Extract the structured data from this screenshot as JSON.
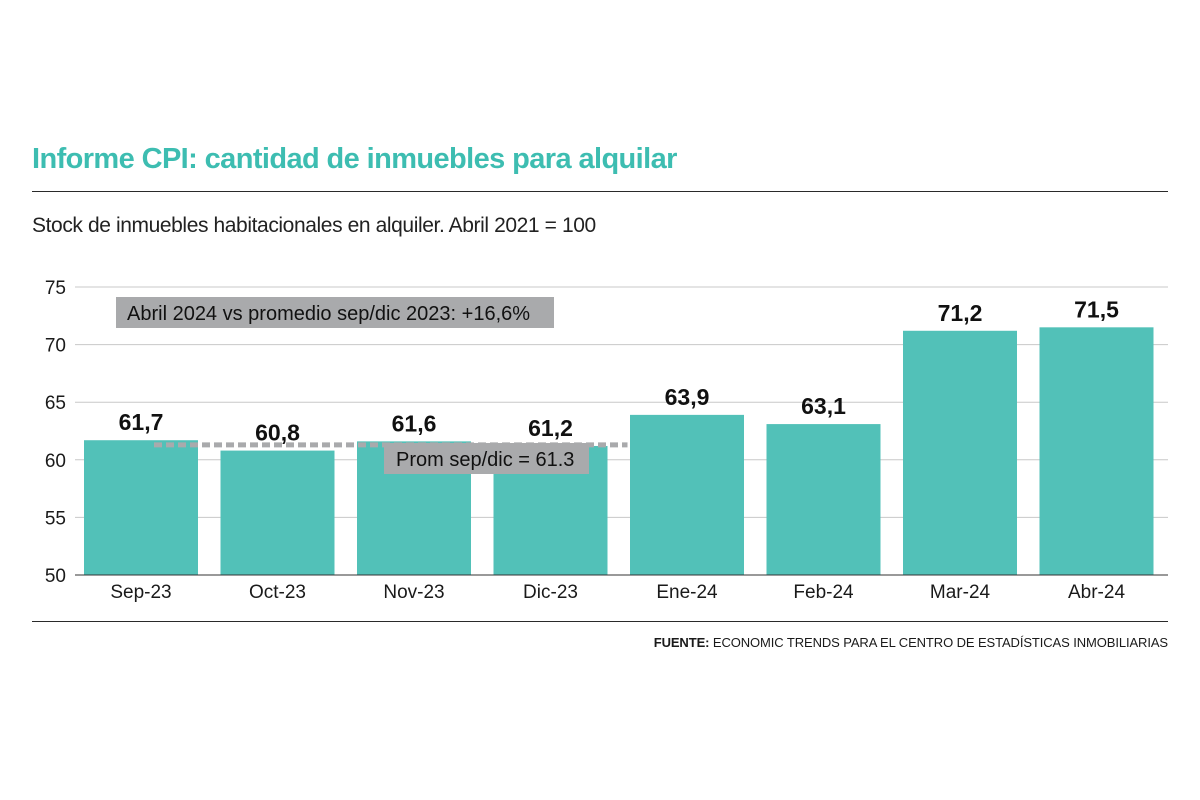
{
  "header": {
    "title": "Informe CPI: cantidad de inmuebles para alquilar",
    "subtitle": "Stock de inmuebles habitacionales en alquiler. Abril 2021 = 100"
  },
  "footer": {
    "source_label": "FUENTE:",
    "source_text": "ECONOMIC TRENDS PARA EL CENTRO DE ESTADÍSTICAS INMOBILIARIAS"
  },
  "colors": {
    "title": "#3dbdb1",
    "bar": "#52c1b8",
    "annotation_box": "#a9aaac",
    "reference_line": "#a9aaac",
    "grid": "#c8c8c8"
  },
  "chart_data": {
    "type": "bar",
    "categories": [
      "Sep-23",
      "Oct-23",
      "Nov-23",
      "Dic-23",
      "Ene-24",
      "Feb-24",
      "Mar-24",
      "Abr-24"
    ],
    "values": [
      61.7,
      60.8,
      61.6,
      61.2,
      63.9,
      63.1,
      71.2,
      71.5
    ],
    "value_labels": [
      "61,7",
      "60,8",
      "61,6",
      "61,2",
      "63,9",
      "63,1",
      "71,2",
      "71,5"
    ],
    "ylim": [
      50,
      75
    ],
    "yticks": [
      50,
      55,
      60,
      65,
      70,
      75
    ],
    "grid": true,
    "reference_line": {
      "value": 61.3,
      "from_category": "Sep-23",
      "to_category": "Dic-23",
      "style": "dashed"
    },
    "annotations": [
      {
        "text": "Abril 2024 vs promedio sep/dic 2023: +16,6%"
      },
      {
        "text": "Prom sep/dic = 61.3"
      }
    ]
  }
}
